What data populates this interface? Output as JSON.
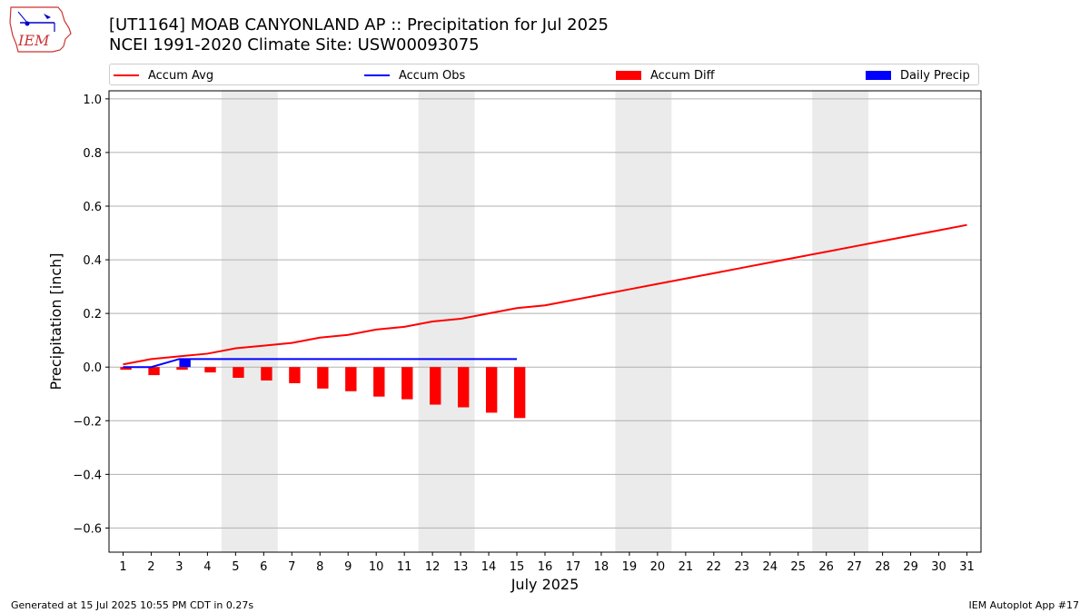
{
  "header": {
    "title_line1": "[UT1164] MOAB CANYONLAND AP :: Precipitation for Jul 2025",
    "title_line2": "NCEI 1991-2020 Climate Site: USW00093075",
    "logo_text": "IEM"
  },
  "footer": {
    "left": "Generated at 15 Jul 2025 10:55 PM CDT in 0.27s",
    "right": "IEM Autoplot App #17"
  },
  "colors": {
    "avg": "#ff0000",
    "obs": "#0000ff",
    "diff": "#ff0000",
    "daily": "#0000ff",
    "weekend_band": "#ebebeb",
    "grid": "#b0b0b0"
  },
  "chart_data": {
    "type": "bar",
    "xlabel": "July 2025",
    "ylabel": "Precipitation [inch]",
    "xlim": [
      0.5,
      31.5
    ],
    "ylim": [
      -0.69,
      1.03
    ],
    "yticks": [
      -0.6,
      -0.4,
      -0.2,
      0.0,
      0.2,
      0.4,
      0.6,
      0.8,
      1.0
    ],
    "ytick_labels": [
      "−0.6",
      "−0.4",
      "−0.2",
      "0.0",
      "0.2",
      "0.4",
      "0.6",
      "0.8",
      "1.0"
    ],
    "days": [
      1,
      2,
      3,
      4,
      5,
      6,
      7,
      8,
      9,
      10,
      11,
      12,
      13,
      14,
      15,
      16,
      17,
      18,
      19,
      20,
      21,
      22,
      23,
      24,
      25,
      26,
      27,
      28,
      29,
      30,
      31
    ],
    "grid": true,
    "legend_position": "top",
    "shaded_day_ranges": [
      [
        4.5,
        6.5
      ],
      [
        11.5,
        13.5
      ],
      [
        18.5,
        20.5
      ],
      [
        25.5,
        27.5
      ]
    ],
    "series": [
      {
        "name": "Accum Avg",
        "kind": "line",
        "x": [
          1,
          2,
          3,
          4,
          5,
          6,
          7,
          8,
          9,
          10,
          11,
          12,
          13,
          14,
          15,
          16,
          17,
          18,
          19,
          20,
          21,
          22,
          23,
          24,
          25,
          26,
          27,
          28,
          29,
          30,
          31
        ],
        "values": [
          0.01,
          0.03,
          0.04,
          0.05,
          0.07,
          0.08,
          0.09,
          0.11,
          0.12,
          0.14,
          0.15,
          0.17,
          0.18,
          0.2,
          0.22,
          0.23,
          0.25,
          0.27,
          0.29,
          0.31,
          0.33,
          0.35,
          0.37,
          0.39,
          0.41,
          0.43,
          0.45,
          0.47,
          0.49,
          0.51,
          0.53
        ]
      },
      {
        "name": "Accum Obs",
        "kind": "line",
        "x": [
          1,
          2,
          3,
          4,
          5,
          6,
          7,
          8,
          9,
          10,
          11,
          12,
          13,
          14,
          15
        ],
        "values": [
          0.0,
          0.0,
          0.03,
          0.03,
          0.03,
          0.03,
          0.03,
          0.03,
          0.03,
          0.03,
          0.03,
          0.03,
          0.03,
          0.03,
          0.03
        ]
      },
      {
        "name": "Accum Diff",
        "kind": "bar",
        "x": [
          1,
          2,
          3,
          4,
          5,
          6,
          7,
          8,
          9,
          10,
          11,
          12,
          13,
          14,
          15
        ],
        "values": [
          -0.01,
          -0.03,
          -0.01,
          -0.02,
          -0.04,
          -0.05,
          -0.06,
          -0.08,
          -0.09,
          -0.11,
          -0.12,
          -0.14,
          -0.15,
          -0.17,
          -0.19
        ]
      },
      {
        "name": "Daily Precip",
        "kind": "bar",
        "x": [
          3
        ],
        "values": [
          0.03
        ]
      }
    ]
  }
}
